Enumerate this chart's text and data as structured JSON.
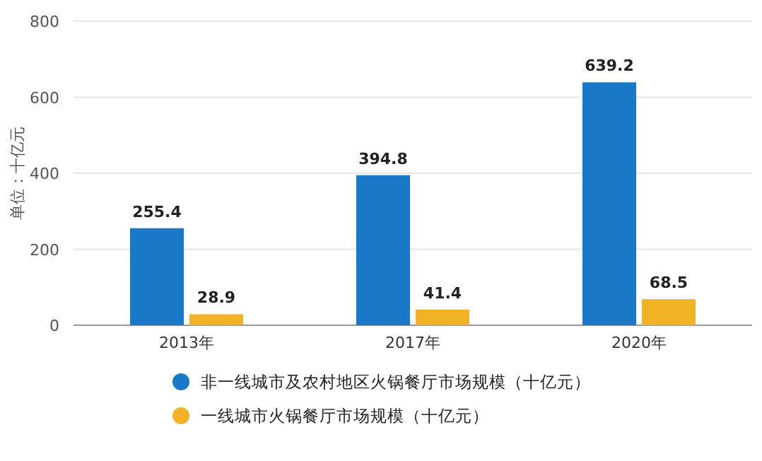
{
  "chart_data": {
    "type": "bar",
    "ylabel": "单位：十亿元",
    "categories": [
      "2013年",
      "2017年",
      "2020年"
    ],
    "series": [
      {
        "name": "非一线城市及农村地区火锅餐厅市场规模（十亿元）",
        "color": "#1a78c8",
        "values": [
          255.4,
          394.8,
          639.2
        ]
      },
      {
        "name": "一线城市火锅餐厅市场规模（十亿元）",
        "color": "#f0b325",
        "values": [
          28.9,
          41.4,
          68.5
        ]
      }
    ],
    "ylim": [
      0,
      800
    ],
    "yticks": [
      0,
      200,
      400,
      600,
      800
    ],
    "grid": "y",
    "legend": "bottom",
    "data_labels": true
  }
}
